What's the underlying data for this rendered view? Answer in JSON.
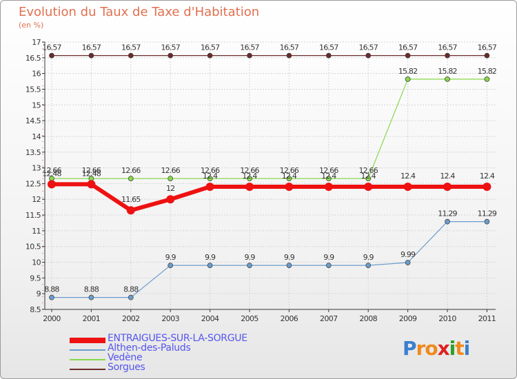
{
  "title": "Evolution du Taux de Taxe d'Habitation",
  "unit_label": "(en %)",
  "logo": {
    "letters": [
      "P",
      "r",
      "o",
      "x",
      "i",
      "t",
      "i"
    ],
    "colors": [
      "#3a7fd0",
      "#f08a1c",
      "#f08a1c",
      "#e02020",
      "#2aa02a",
      "#f08a1c",
      "#3a7fd0"
    ]
  },
  "chart_data": {
    "type": "line",
    "title": "Evolution du Taux de Taxe d'Habitation",
    "ylabel": "(en %)",
    "xlabel": "",
    "ylim": [
      8.5,
      17
    ],
    "yticks": [
      "8.5",
      "9",
      "9.5",
      "10",
      "10.5",
      "11",
      "11.5",
      "12",
      "12.5",
      "13",
      "13.5",
      "14",
      "14.5",
      "15",
      "15.5",
      "16",
      "16.5",
      "17"
    ],
    "x": [
      "2000",
      "2001",
      "2002",
      "2003",
      "2004",
      "2005",
      "2006",
      "2007",
      "2008",
      "2009",
      "2010",
      "2011"
    ],
    "grid": true,
    "legend_position": "bottom-left",
    "series": [
      {
        "name": "Sorgues",
        "color": "#6b2a2a",
        "width": 1.2,
        "marker": 3.5,
        "values": [
          16.57,
          16.57,
          16.57,
          16.57,
          16.57,
          16.57,
          16.57,
          16.57,
          16.57,
          16.57,
          16.57,
          16.57
        ],
        "labels": [
          "16.57",
          "16.57",
          "16.57",
          "16.57",
          "16.57",
          "16.57",
          "16.57",
          "16.57",
          "16.57",
          "16.57",
          "16.57",
          "16.57"
        ]
      },
      {
        "name": "Vedène",
        "color": "#88d84a",
        "width": 1.2,
        "marker": 3.5,
        "values": [
          12.66,
          12.66,
          12.66,
          12.66,
          12.66,
          12.66,
          12.66,
          12.66,
          12.66,
          15.82,
          15.82,
          15.82
        ],
        "labels": [
          "12.66",
          "12.66",
          "12.66",
          "12.66",
          "12.66",
          "12.66",
          "12.66",
          "12.66",
          "12.66",
          "15.82",
          "15.82",
          "15.82"
        ]
      },
      {
        "name": "Althen-des-Paluds",
        "color": "#6a9ccc",
        "width": 1.2,
        "marker": 3.5,
        "values": [
          8.88,
          8.88,
          8.88,
          9.9,
          9.9,
          9.9,
          9.9,
          9.9,
          9.9,
          9.99,
          11.29,
          11.29
        ],
        "labels": [
          "8.88",
          "8.88",
          "8.88",
          "9.9",
          "9.9",
          "9.9",
          "9.9",
          "9.9",
          "9.9",
          "9.99",
          "11.29",
          "11.29"
        ]
      },
      {
        "name": "ENTRAIGUES-SUR-LA-SORGUE",
        "color": "#ee1111",
        "width": 6,
        "marker": 6,
        "values": [
          12.48,
          12.48,
          11.65,
          12,
          12.4,
          12.4,
          12.4,
          12.4,
          12.4,
          12.4,
          12.4,
          12.4
        ],
        "labels": [
          "12.48",
          "12.48",
          "11.65",
          "12",
          "12.4",
          "12.4",
          "12.4",
          "12.4",
          "12.4",
          "12.4",
          "12.4",
          "12.4"
        ]
      }
    ]
  }
}
